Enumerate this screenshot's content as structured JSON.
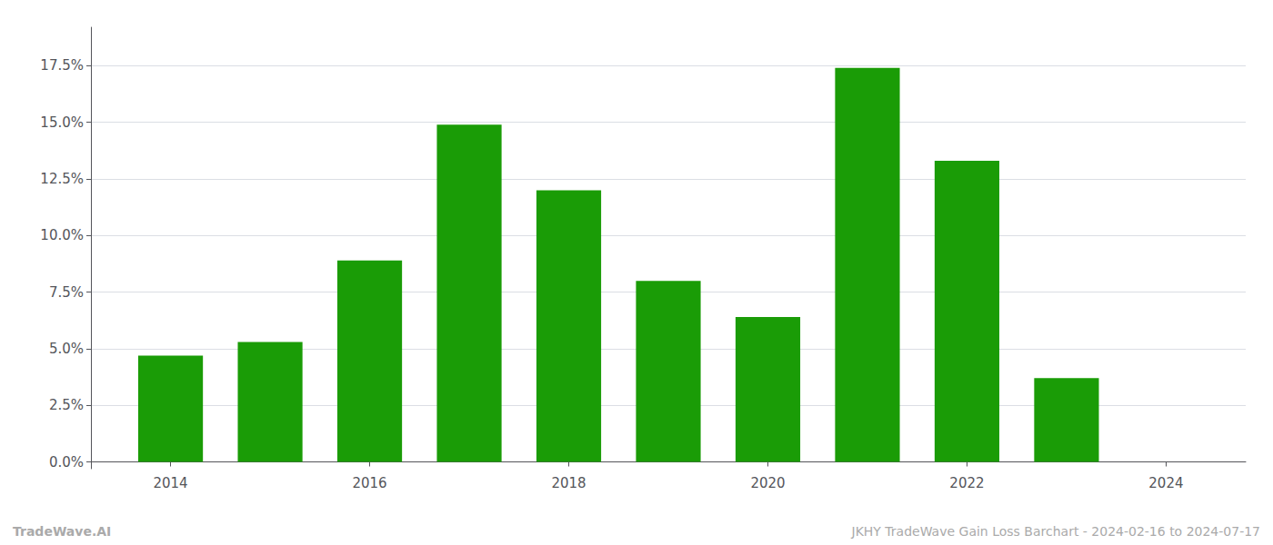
{
  "chart_data": {
    "type": "bar",
    "x": [
      2014,
      2015,
      2016,
      2017,
      2018,
      2019,
      2020,
      2021,
      2022,
      2023,
      2024
    ],
    "values": [
      0.047,
      0.053,
      0.089,
      0.149,
      0.12,
      0.08,
      0.064,
      0.174,
      0.133,
      0.037,
      0.0
    ],
    "color": "#1a9c06",
    "xlim": [
      2013.2,
      2024.8
    ],
    "xticks": [
      2014,
      2016,
      2018,
      2020,
      2022,
      2024
    ],
    "ylim": [
      -0.003,
      0.192
    ],
    "yticks": [
      {
        "value": 0.0,
        "label": "0.0%"
      },
      {
        "value": 0.025,
        "label": "2.5%"
      },
      {
        "value": 0.05,
        "label": "5.0%"
      },
      {
        "value": 0.075,
        "label": "7.5%"
      },
      {
        "value": 0.1,
        "label": "10.0%"
      },
      {
        "value": 0.125,
        "label": "12.5%"
      },
      {
        "value": 0.15,
        "label": "15.0%"
      },
      {
        "value": 0.175,
        "label": "17.5%"
      }
    ],
    "grid": true,
    "annotations": [
      "TradeWave.AI",
      "JKHY TradeWave Gain Loss Barchart - 2024-02-16 to 2024-07-17"
    ]
  }
}
